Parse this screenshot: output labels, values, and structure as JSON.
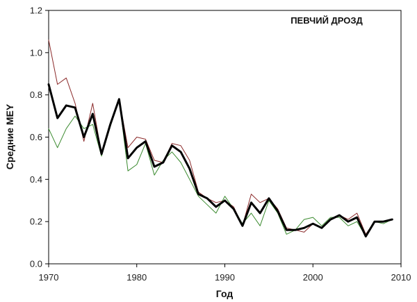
{
  "chart_data": {
    "type": "line",
    "title": "ПЕВЧИЙ ДРОЗД",
    "xlabel": "Год",
    "ylabel": "Средние MEY",
    "xlim": [
      1970,
      2010
    ],
    "ylim": [
      0,
      1.2
    ],
    "xticks": [
      "1970",
      "1980",
      "1990",
      "2000",
      "2010"
    ],
    "yticks": [
      "0.0",
      "0.2",
      "0.4",
      "0.6",
      "0.8",
      "1.0",
      "1.2"
    ],
    "grid": false,
    "legend": "none",
    "x": [
      1970,
      1971,
      1972,
      1973,
      1974,
      1975,
      1976,
      1977,
      1978,
      1979,
      1980,
      1981,
      1982,
      1983,
      1984,
      1985,
      1986,
      1987,
      1988,
      1989,
      1990,
      1991,
      1992,
      1993,
      1994,
      1995,
      1996,
      1997,
      1998,
      1999,
      2000,
      2001,
      2002,
      2003,
      2004,
      2005,
      2006,
      2007,
      2008,
      2009
    ],
    "series": [
      {
        "color": "#8b2a2a",
        "width": 1,
        "values": [
          1.06,
          0.85,
          0.88,
          0.76,
          0.58,
          0.76,
          0.52,
          0.66,
          0.78,
          0.55,
          0.6,
          0.59,
          0.49,
          0.48,
          0.57,
          0.56,
          0.49,
          0.34,
          0.31,
          0.29,
          0.3,
          0.27,
          0.18,
          0.33,
          0.29,
          0.31,
          0.26,
          0.17,
          0.16,
          0.15,
          0.19,
          0.17,
          0.21,
          0.23,
          0.21,
          0.24,
          0.14,
          0.2,
          0.2,
          0.21
        ]
      },
      {
        "color": "#3a8a2e",
        "width": 1,
        "values": [
          0.64,
          0.55,
          0.64,
          0.7,
          0.64,
          0.66,
          0.51,
          0.65,
          0.78,
          0.44,
          0.47,
          0.57,
          0.42,
          0.49,
          0.53,
          0.48,
          0.4,
          0.32,
          0.28,
          0.24,
          0.32,
          0.26,
          0.19,
          0.24,
          0.18,
          0.3,
          0.24,
          0.14,
          0.16,
          0.21,
          0.22,
          0.18,
          0.22,
          0.22,
          0.18,
          0.2,
          0.13,
          0.2,
          0.19,
          0.21
        ]
      },
      {
        "color": "#000000",
        "width": 3,
        "values": [
          0.85,
          0.69,
          0.75,
          0.74,
          0.6,
          0.71,
          0.52,
          0.66,
          0.78,
          0.5,
          0.55,
          0.58,
          0.46,
          0.48,
          0.56,
          0.53,
          0.45,
          0.33,
          0.31,
          0.27,
          0.3,
          0.26,
          0.18,
          0.29,
          0.24,
          0.31,
          0.25,
          0.16,
          0.16,
          0.17,
          0.19,
          0.17,
          0.21,
          0.23,
          0.2,
          0.22,
          0.13,
          0.2,
          0.2,
          0.21
        ]
      }
    ]
  }
}
